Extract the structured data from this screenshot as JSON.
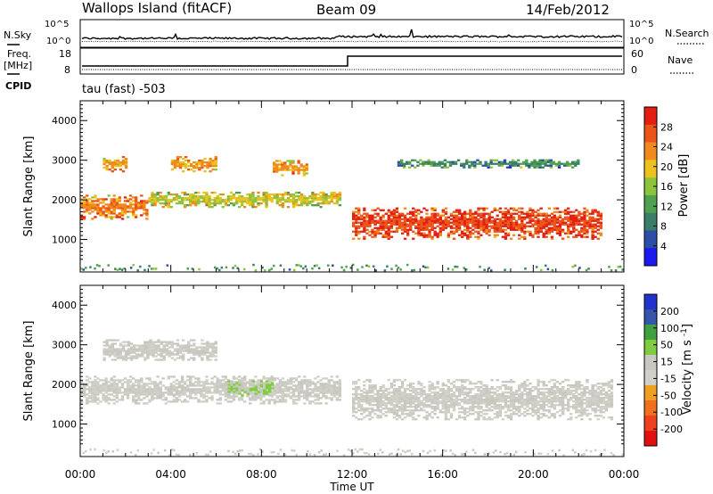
{
  "header": {
    "station": "Wallops Island (fitACF)",
    "beam": "Beam 09",
    "date": "14/Feb/2012"
  },
  "sky_panel": {
    "left_label": "N.Sky",
    "right_label": "N.Search",
    "left_ticks": [
      "10^5",
      "10^0"
    ],
    "right_ticks": [
      "10^5",
      "10^0"
    ]
  },
  "freq_panel": {
    "left_label": "Freq.",
    "unit": "[MHz]",
    "right_label": "Nave",
    "left_ticks": [
      "18",
      "8"
    ],
    "right_ticks": [
      "60",
      "0"
    ]
  },
  "cpid": {
    "label": "CPID",
    "value": "tau (fast) -503"
  },
  "colors": {
    "power_scale": [
      "#1a1aee",
      "#2b4fa6",
      "#3a7e6a",
      "#4fa04f",
      "#8cc53c",
      "#ecc21e",
      "#f08a1c",
      "#ec5518",
      "#e41e12"
    ],
    "velocity_scale": [
      "#2233cc",
      "#3355aa",
      "#40a040",
      "#80cc40",
      "#c8c8c0",
      "#d0d0c8",
      "#f0a020",
      "#f07020",
      "#f04020",
      "#e01010"
    ]
  },
  "chart_data": [
    {
      "type": "heatmap",
      "title": "",
      "xlabel": "",
      "ylabel": "Slant Range [km]",
      "xlim": [
        0,
        24
      ],
      "ylim": [
        180,
        4500
      ],
      "y_ticks": [
        1000,
        2000,
        3000,
        4000
      ],
      "colorbar": {
        "label": "Power [dB]",
        "range": [
          0,
          32
        ],
        "ticks": [
          "4",
          "8",
          "12",
          "16",
          "20",
          "24",
          "28"
        ]
      },
      "echo_bands": [
        {
          "t": [
            0,
            3
          ],
          "range_km": [
            1500,
            2100
          ],
          "power_db": 24
        },
        {
          "t": [
            3,
            11.5
          ],
          "range_km": [
            1800,
            2200
          ],
          "power_db": 18
        },
        {
          "t": [
            1,
            2
          ],
          "range_km": [
            2700,
            3100
          ],
          "power_db": 22
        },
        {
          "t": [
            4,
            6
          ],
          "range_km": [
            2700,
            3100
          ],
          "power_db": 22
        },
        {
          "t": [
            8.5,
            10
          ],
          "range_km": [
            2600,
            3000
          ],
          "power_db": 22
        },
        {
          "t": [
            12,
            23
          ],
          "range_km": [
            1000,
            1800
          ],
          "power_db": 28
        },
        {
          "t": [
            14,
            22
          ],
          "range_km": [
            2800,
            3000
          ],
          "power_db": 10
        }
      ]
    },
    {
      "type": "heatmap",
      "title": "",
      "xlabel": "Time UT",
      "ylabel": "Slant Range [km]",
      "xlim": [
        0,
        24
      ],
      "ylim": [
        180,
        4500
      ],
      "y_ticks": [
        1000,
        2000,
        3000,
        4000
      ],
      "x_ticks": [
        "00:00",
        "04:00",
        "08:00",
        "12:00",
        "16:00",
        "20:00",
        "00:00"
      ],
      "colorbar": {
        "label": "Velocity [m s^-1]",
        "range": [
          -250,
          250
        ],
        "ticks": [
          "200",
          "100",
          "50",
          "15",
          "-15",
          "-50",
          "-100",
          "-200"
        ]
      },
      "echo_bands": [
        {
          "t": [
            0,
            11.5
          ],
          "range_km": [
            1500,
            2200
          ],
          "velocity": 0
        },
        {
          "t": [
            6.5,
            8.5
          ],
          "range_km": [
            1700,
            2100
          ],
          "velocity": 50
        },
        {
          "t": [
            12,
            23.5
          ],
          "range_km": [
            1100,
            2100
          ],
          "velocity": 0
        },
        {
          "t": [
            1,
            6
          ],
          "range_km": [
            2600,
            3100
          ],
          "velocity": 0
        }
      ]
    }
  ]
}
